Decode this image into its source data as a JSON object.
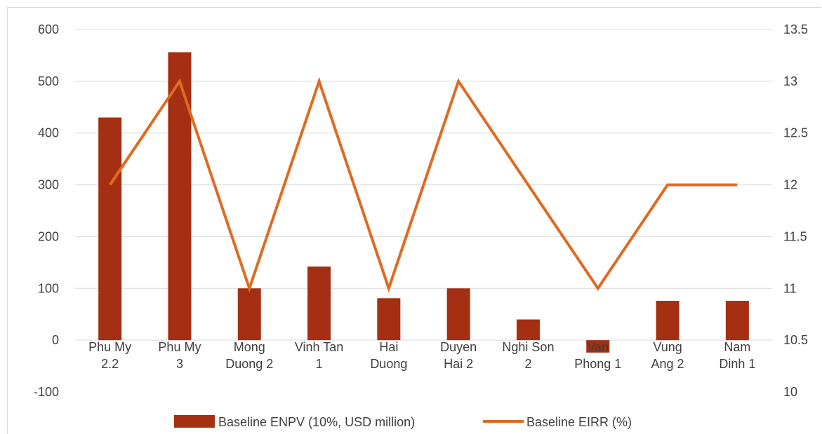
{
  "chart_data": {
    "type": "bar",
    "categories": [
      [
        "Phu My",
        "2.2"
      ],
      [
        "Phu My",
        "3"
      ],
      [
        "Mong",
        "Duong 2"
      ],
      [
        "Vinh Tan",
        "1"
      ],
      [
        "Hai",
        "Duong"
      ],
      [
        "Duyen",
        "Hai 2"
      ],
      [
        "Nghi Son",
        "2"
      ],
      [
        "Van",
        "Phong 1"
      ],
      [
        "Vung",
        "Ang 2"
      ],
      [
        "Nam",
        "Dinh 1"
      ]
    ],
    "series": [
      {
        "name": "Baseline ENPV (10%, USD million)",
        "type": "bar",
        "axis": "left",
        "values": [
          430,
          556,
          100,
          142,
          81,
          100,
          40,
          -24,
          76,
          76
        ]
      },
      {
        "name": "Baseline EIRR (%)",
        "type": "line",
        "axis": "right",
        "values": [
          12,
          13,
          11,
          13,
          11,
          13,
          12,
          11,
          12,
          12
        ]
      }
    ],
    "ylim_left": [
      -100,
      600
    ],
    "yticks_left": [
      "600",
      "500",
      "400",
      "300",
      "200",
      "100",
      "0",
      "-100"
    ],
    "ylim_right": [
      10,
      13.5
    ],
    "yticks_right": [
      "13.5",
      "13",
      "12.5",
      "12",
      "11.5",
      "11",
      "10.5",
      "10"
    ],
    "grid": true,
    "legend_position": "bottom",
    "colors": {
      "bar": "#a52f12",
      "line": "#e06a21",
      "grid": "#d9d9d9",
      "text": "#404040"
    }
  }
}
